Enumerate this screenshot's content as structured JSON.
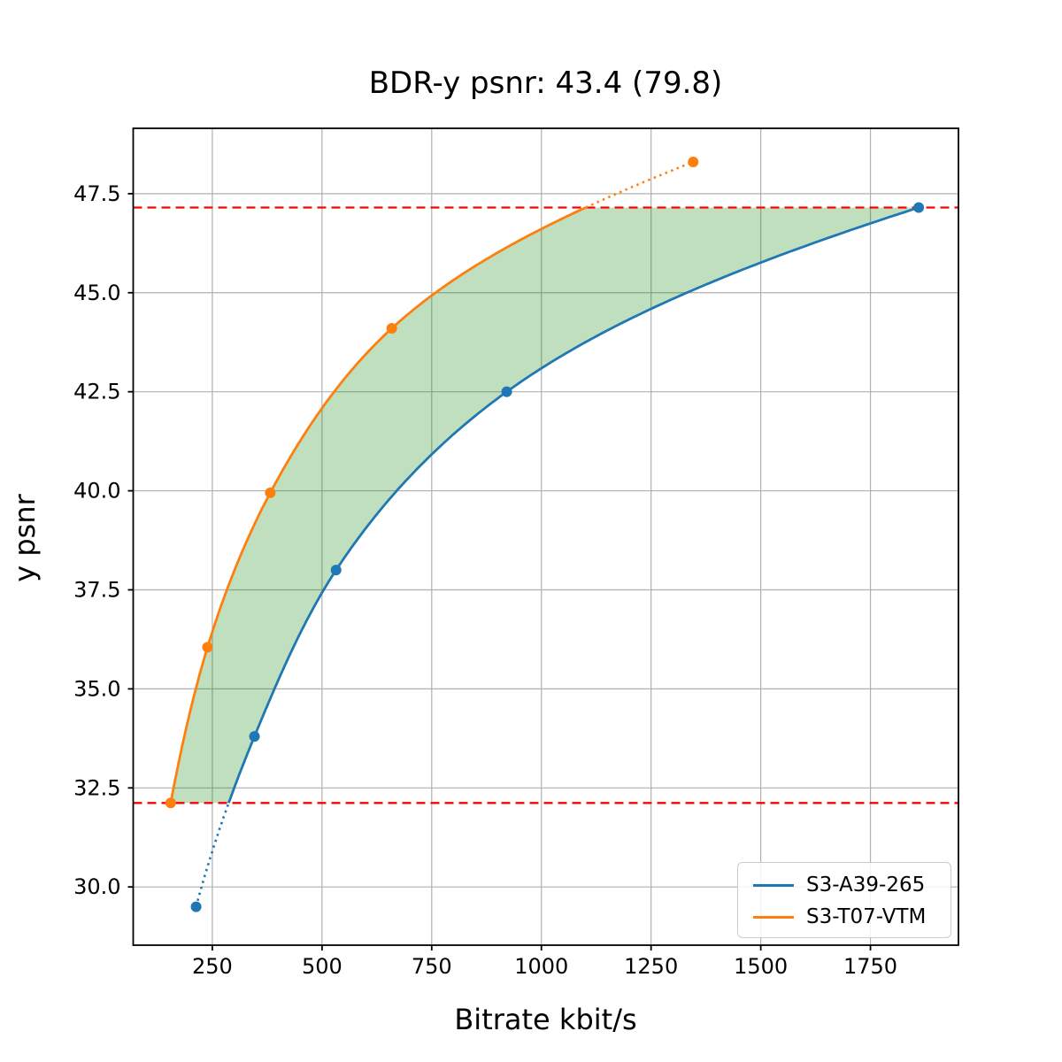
{
  "chart_data": {
    "type": "line",
    "title": "BDR-y psnr: 43.4 (79.8)",
    "xlabel": "Bitrate kbit/s",
    "ylabel": "y psnr",
    "xlim": [
      69.6,
      1950.6
    ],
    "ylim": [
      28.53,
      49.15
    ],
    "x_ticks": [
      250,
      500,
      750,
      1000,
      1250,
      1500,
      1750
    ],
    "y_ticks": [
      30.0,
      32.5,
      35.0,
      37.5,
      40.0,
      42.5,
      45.0,
      47.5
    ],
    "grid": true,
    "grid_color": "#b0b0b0",
    "series": [
      {
        "name": "S3-A39-265",
        "color": "#1f77b4",
        "x": [
          213,
          346,
          532,
          921,
          1860
        ],
        "y": [
          29.5,
          33.8,
          38.0,
          42.5,
          47.15
        ]
      },
      {
        "name": "S3-T07-VTM",
        "color": "#ff7f0e",
        "x": [
          155,
          239,
          382,
          659,
          1346
        ],
        "y": [
          32.12,
          36.05,
          39.95,
          44.1,
          48.3
        ]
      }
    ],
    "hlines": {
      "upper": 47.15,
      "lower": 32.12,
      "color": "#ff0000",
      "style": "dashed"
    },
    "overlap_fill": {
      "color": "#008000",
      "alpha": 0.25
    },
    "legend": {
      "position": "lower right"
    }
  }
}
